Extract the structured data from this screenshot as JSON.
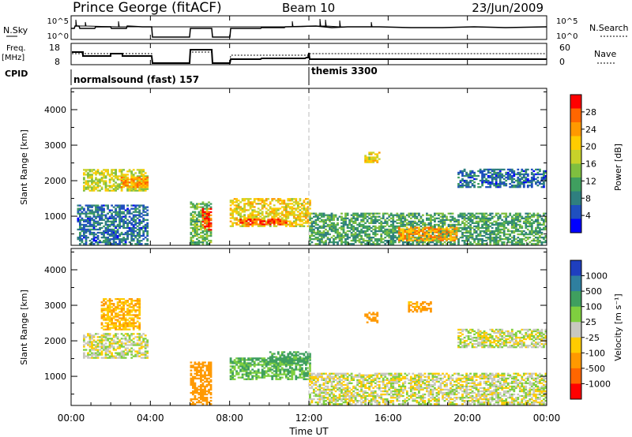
{
  "header": {
    "station": "Prince George (fitACF)",
    "beam": "Beam 10",
    "date": "23/Jun/2009"
  },
  "panels": {
    "nsky": {
      "label": "N.Sky",
      "ticks_left": [
        "10^5",
        "10^0"
      ],
      "ticks_right": [
        "10^5",
        "10^0"
      ],
      "right_label": "N.Search"
    },
    "freq": {
      "label_line1": "Freq.",
      "label_line2": "[MHz]",
      "ticks_left": [
        "18",
        "8"
      ],
      "ticks_right": [
        "60",
        "0"
      ],
      "right_label": "Nave"
    },
    "cpid": {
      "label": "CPID",
      "modes": [
        "normalsound (fast) 157",
        "themis 3300"
      ]
    },
    "power": {
      "ylabel": "Slant Range [km]",
      "yticks": [
        "4000",
        "3000",
        "2000",
        "1000"
      ],
      "colorbar_label": "Power [dB]",
      "colorbar_ticks": [
        "28",
        "24",
        "20",
        "16",
        "12",
        "8",
        "4"
      ],
      "colorbar_colors": [
        "#ff0000",
        "#ff6600",
        "#ff9900",
        "#ffcc00",
        "#c8d22a",
        "#7fbf3f",
        "#3f9f5f",
        "#2f7f7f",
        "#1f4fbf",
        "#0000ff"
      ]
    },
    "velocity": {
      "ylabel": "Slant Range [km]",
      "yticks": [
        "4000",
        "3000",
        "2000",
        "1000"
      ],
      "colorbar_label": "Velocity [m s⁻¹]",
      "colorbar_ticks": [
        "1000",
        "500",
        "100",
        "25",
        "-25",
        "-100",
        "-500",
        "-1000"
      ],
      "colorbar_colors": [
        "#1f3fbf",
        "#2f7f9f",
        "#3f9f5f",
        "#7fcf3f",
        "#c8c8c0",
        "#ffcc00",
        "#ff9900",
        "#ff6600",
        "#ff0000"
      ]
    }
  },
  "xaxis": {
    "label": "Time UT",
    "ticks": [
      "00:00",
      "04:00",
      "08:00",
      "12:00",
      "16:00",
      "20:00",
      "00:00"
    ]
  },
  "chart_data": {
    "type": "heatmap",
    "x_range_hours": [
      0,
      24
    ],
    "y_range_km": [
      180,
      4600
    ],
    "data_gaps_hours": [
      [
        4.0,
        6.0
      ],
      [
        7.0,
        8.0
      ]
    ],
    "cpid_change_hour": 12.0,
    "power_regions": [
      {
        "t0": 0.6,
        "t1": 3.9,
        "r0": 1700,
        "r1": 2300,
        "dB": 18
      },
      {
        "t0": 2.5,
        "t1": 3.9,
        "r0": 1800,
        "r1": 2100,
        "dB": 24
      },
      {
        "t0": 0.3,
        "t1": 3.9,
        "r0": 200,
        "r1": 1300,
        "dB": 8
      },
      {
        "t0": 6.0,
        "t1": 7.0,
        "r0": 200,
        "r1": 1400,
        "dB": 14
      },
      {
        "t0": 6.6,
        "t1": 7.0,
        "r0": 600,
        "r1": 1200,
        "dB": 28
      },
      {
        "t0": 8.0,
        "t1": 12.0,
        "r0": 700,
        "r1": 1500,
        "dB": 20
      },
      {
        "t0": 8.5,
        "t1": 10.8,
        "r0": 750,
        "r1": 900,
        "dB": 28
      },
      {
        "t0": 12.0,
        "t1": 24.0,
        "r0": 200,
        "r1": 1100,
        "dB": 12
      },
      {
        "t0": 16.5,
        "t1": 19.5,
        "r0": 300,
        "r1": 700,
        "dB": 24
      },
      {
        "t0": 14.8,
        "t1": 15.5,
        "r0": 2500,
        "r1": 2800,
        "dB": 20
      },
      {
        "t0": 19.5,
        "t1": 24.0,
        "r0": 1800,
        "r1": 2300,
        "dB": 8
      }
    ],
    "velocity_regions": [
      {
        "t0": 0.6,
        "t1": 3.9,
        "r0": 1500,
        "r1": 2200,
        "v": 0
      },
      {
        "t0": 1.5,
        "t1": 3.5,
        "r0": 2300,
        "r1": 3200,
        "v": -100
      },
      {
        "t0": 6.0,
        "t1": 7.0,
        "r0": 200,
        "r1": 1400,
        "v": -200
      },
      {
        "t0": 8.0,
        "t1": 12.0,
        "r0": 900,
        "r1": 1500,
        "v": 100
      },
      {
        "t0": 10.0,
        "t1": 12.0,
        "r0": 1300,
        "r1": 1700,
        "v": 150
      },
      {
        "t0": 12.0,
        "t1": 24.0,
        "r0": 200,
        "r1": 1100,
        "v": 0
      },
      {
        "t0": 14.8,
        "t1": 15.4,
        "r0": 2500,
        "r1": 2800,
        "v": -200
      },
      {
        "t0": 17.0,
        "t1": 18.2,
        "r0": 2800,
        "r1": 3100,
        "v": -150
      },
      {
        "t0": 19.5,
        "t1": 24.0,
        "r0": 1800,
        "r1": 2300,
        "v": 0
      }
    ]
  }
}
